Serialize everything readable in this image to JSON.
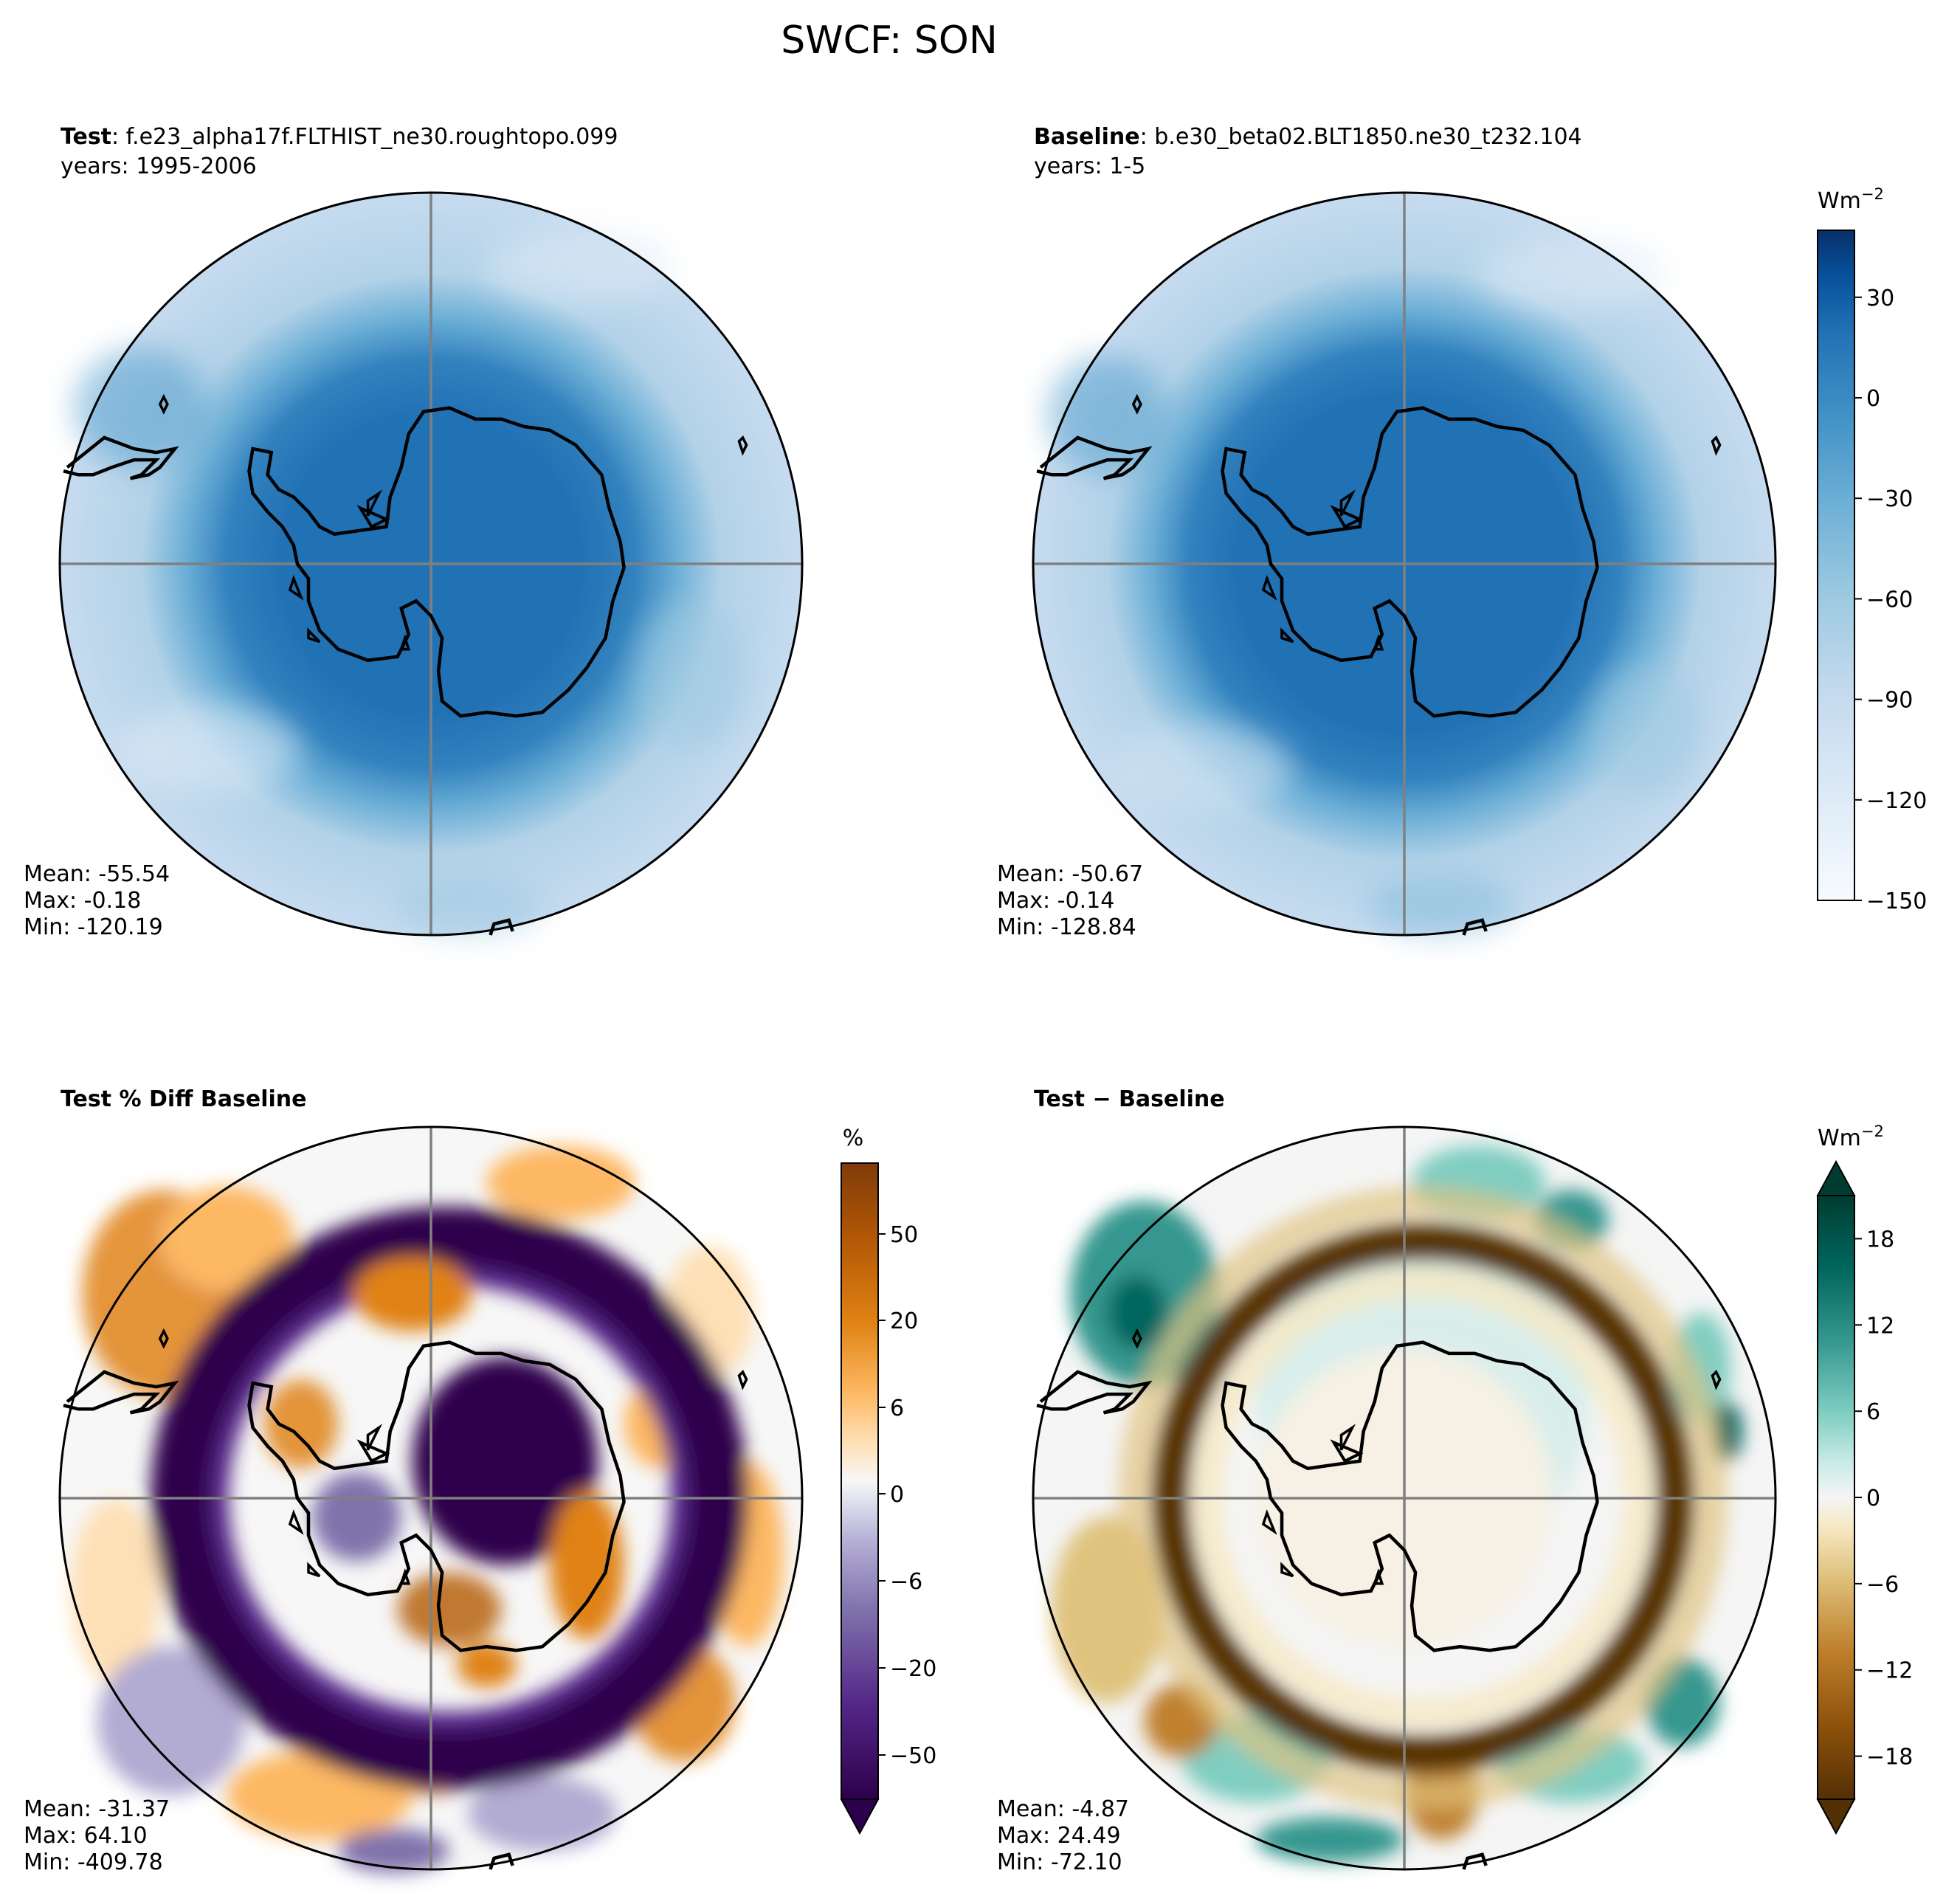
{
  "figure_title": "SWCF: SON",
  "colors": {
    "blues": [
      "#f7fbff",
      "#ebf3fb",
      "#deebf7",
      "#d2e3f3",
      "#c6dbef",
      "#b2d2e8",
      "#9ecae1",
      "#84bcdb",
      "#6baed6",
      "#57a0ce",
      "#4292c6",
      "#3282be",
      "#2171b5",
      "#1361a9",
      "#08519c",
      "#083e80",
      "#08306b"
    ],
    "purpor": [
      "#2d004b",
      "#542788",
      "#8073ac",
      "#b2abd2",
      "#d8daeb",
      "#f7f7f7",
      "#fee0b6",
      "#fdb863",
      "#e08214",
      "#b35806",
      "#7f3b08"
    ],
    "brbg": [
      "#543005",
      "#8c510a",
      "#bf812d",
      "#dfc27d",
      "#f6e8c3",
      "#f5f5f5",
      "#c7eae5",
      "#80cdc1",
      "#35978f",
      "#01665e",
      "#003c30"
    ],
    "coast": "#000000",
    "grid": "#808080"
  },
  "chart_data": [
    {
      "type": "heatmap",
      "panel_id": "test",
      "title_bold": "Test",
      "title_rest": ": f.e23_alpha17f.FLTHIST_ne30.roughtopo.099",
      "subtitle": "years: 1995-2006",
      "stats": {
        "mean": "Mean: -55.54",
        "max": "Max: -0.18",
        "min": "Min: -120.19"
      },
      "projection": "south polar stereographic",
      "field": {
        "center_value": -20,
        "outer_value": -100,
        "ring_radius": 0.55,
        "ring_width": 0.09
      }
    },
    {
      "type": "heatmap",
      "panel_id": "baseline",
      "title_bold": "Baseline",
      "title_rest": ": b.e30_beta02.BLT1850.ne30_t232.104",
      "subtitle": "years: 1-5",
      "stats": {
        "mean": "Mean: -50.67",
        "max": "Max: -0.14",
        "min": "Min: -128.84"
      },
      "projection": "south polar stereographic",
      "field": {
        "center_value": -15,
        "outer_value": -95,
        "ring_radius": 0.6,
        "ring_width": 0.09
      },
      "colorbar": {
        "units": "Wm",
        "units_exp": "−2",
        "range": [
          -150,
          50
        ],
        "ticks": [
          30,
          0,
          -30,
          -60,
          -90,
          -120,
          -150
        ],
        "tick_labels": [
          "30",
          "0",
          "−30",
          "−60",
          "−90",
          "−120",
          "−150"
        ],
        "extend": "neither"
      }
    },
    {
      "type": "heatmap",
      "panel_id": "pct",
      "title_bold": "Test % Diff Baseline",
      "stats": {
        "mean": "Mean: -31.37",
        "max": "Max: 64.10",
        "min": "Min: -409.78"
      },
      "projection": "south polar stereographic",
      "colorbar": {
        "units": "%",
        "ticks": [
          50,
          20,
          6,
          0,
          -6,
          -20,
          -50
        ],
        "tick_labels": [
          "50",
          "20",
          "6",
          "0",
          "−6",
          "−20",
          "−50"
        ],
        "extend": "min"
      }
    },
    {
      "type": "heatmap",
      "panel_id": "diff",
      "title_bold": "Test − Baseline",
      "stats": {
        "mean": "Mean: -4.87",
        "max": "Max: 24.49",
        "min": "Min: -72.10"
      },
      "projection": "south polar stereographic",
      "colorbar": {
        "units": "Wm",
        "units_exp": "−2",
        "range": [
          -21,
          21
        ],
        "ticks": [
          18,
          12,
          6,
          0,
          -6,
          -12,
          -18
        ],
        "tick_labels": [
          "18",
          "12",
          "6",
          "0",
          "−6",
          "−12",
          "−18"
        ],
        "extend": "both"
      }
    }
  ]
}
